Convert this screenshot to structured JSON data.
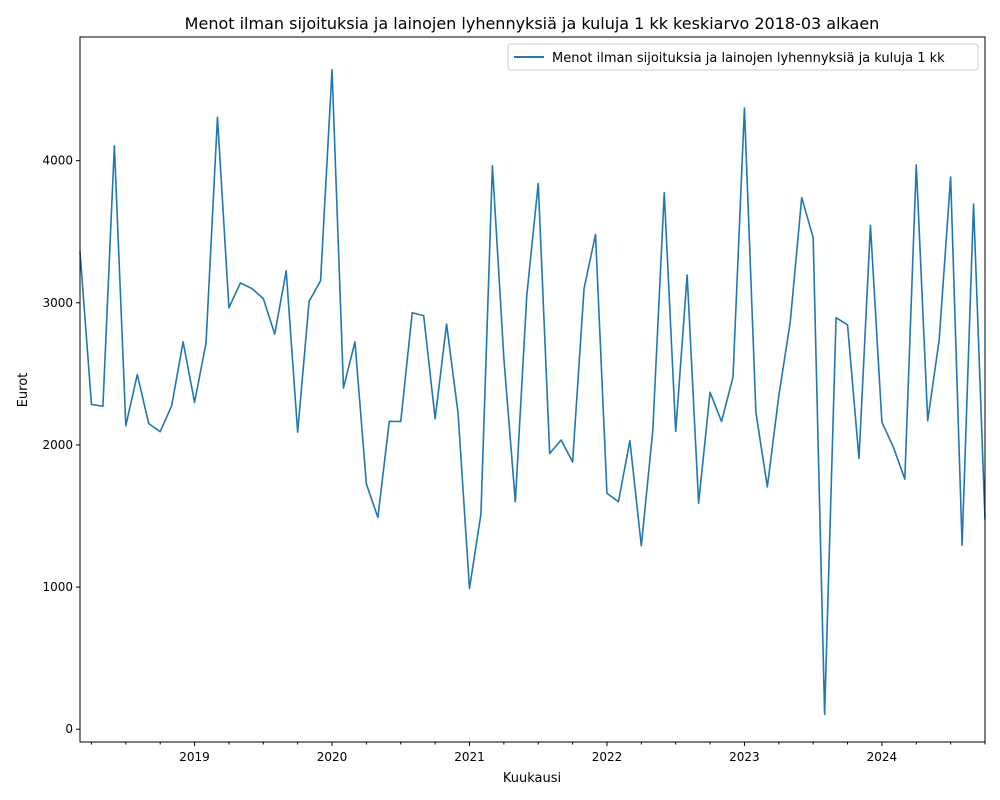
{
  "chart_data": {
    "type": "line",
    "title": "Menot ilman sijoituksia ja lainojen lyhennyksiä ja kuluja 1 kk keskiarvo 2018-03 alkaen",
    "xlabel": "Kuukausi",
    "ylabel": "Eurot",
    "x_start": "2018-03",
    "xlim": [
      "2018-03",
      "2024-10"
    ],
    "ylim": [
      -90,
      4870
    ],
    "yticks": [
      0,
      1000,
      2000,
      3000,
      4000
    ],
    "xticks": [
      {
        "month": "2019-01",
        "label": "2019"
      },
      {
        "month": "2020-01",
        "label": "2020"
      },
      {
        "month": "2021-01",
        "label": "2021"
      },
      {
        "month": "2022-01",
        "label": "2022"
      },
      {
        "month": "2023-01",
        "label": "2023"
      },
      {
        "month": "2024-01",
        "label": "2024"
      }
    ],
    "legend_position": "top-right",
    "color": "#1f77b4",
    "series": [
      {
        "name": "Menot ilman sijoituksia ja lainojen lyhennyksiä ja kuluja 1 kk",
        "values": [
          3360,
          2285,
          2272,
          4105,
          2135,
          2495,
          2150,
          2093,
          2275,
          2725,
          2300,
          2715,
          4305,
          2965,
          3140,
          3100,
          3030,
          2780,
          3225,
          2090,
          3010,
          3155,
          4640,
          2400,
          2725,
          1725,
          1490,
          2165,
          2165,
          2930,
          2910,
          2185,
          2850,
          2225,
          990,
          1515,
          3965,
          2610,
          1600,
          3050,
          3840,
          1940,
          2035,
          1880,
          3100,
          3480,
          1660,
          1600,
          2030,
          1290,
          2100,
          3775,
          2095,
          3195,
          1590,
          2370,
          2165,
          2475,
          4370,
          2230,
          1705,
          2345,
          2865,
          3740,
          3460,
          105,
          2895,
          2845,
          1905,
          3545,
          2160,
          1985,
          1760,
          3970,
          2170,
          2740,
          3885,
          1295,
          3695,
          1475
        ]
      }
    ]
  }
}
